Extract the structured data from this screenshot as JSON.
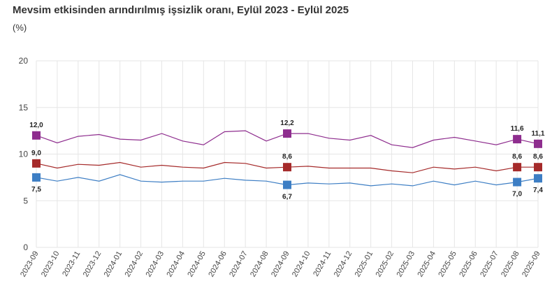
{
  "chart_data": {
    "type": "line",
    "title": "Mevsim etkisinden arındırılmış işsizlik oranı, Eylül 2023 - Eylül 2025",
    "ylabel": "(%)",
    "xlabel": "",
    "ylim": [
      0,
      20
    ],
    "yticks": [
      "0",
      "5",
      "10",
      "15",
      "20"
    ],
    "grid": true,
    "categories": [
      "2023-09",
      "2023-10",
      "2023-11",
      "2023-12",
      "2024-01",
      "2024-02",
      "2024-03",
      "2024-04",
      "2024-05",
      "2024-06",
      "2024-07",
      "2024-08",
      "2024-09",
      "2024-10",
      "2024-11",
      "2024-12",
      "2025-01",
      "2025-02",
      "2025-03",
      "2025-04",
      "2025-05",
      "2025-06",
      "2025-07",
      "2025-08",
      "2025-09"
    ],
    "series": [
      {
        "color": "#8e2d8e",
        "values": [
          12.0,
          11.2,
          11.9,
          12.1,
          11.6,
          11.5,
          12.2,
          11.4,
          11.0,
          12.4,
          12.5,
          11.4,
          12.2,
          12.2,
          11.7,
          11.5,
          12.0,
          11.0,
          10.7,
          11.5,
          11.8,
          11.4,
          11.0,
          11.6,
          11.1
        ],
        "labels": {
          "0": "12,0",
          "12": "12,2",
          "23": "11,6",
          "24": "11,1"
        }
      },
      {
        "color": "#a52a2a",
        "values": [
          9.0,
          8.5,
          8.9,
          8.8,
          9.1,
          8.6,
          8.8,
          8.6,
          8.5,
          9.1,
          9.0,
          8.5,
          8.6,
          8.7,
          8.5,
          8.5,
          8.5,
          8.2,
          8.0,
          8.6,
          8.4,
          8.6,
          8.2,
          8.6,
          8.6
        ],
        "labels": {
          "0": "9,0",
          "12": "8,6",
          "23": "8,6",
          "24": "8,6"
        }
      },
      {
        "color": "#3d7ec4",
        "values": [
          7.5,
          7.1,
          7.5,
          7.1,
          7.8,
          7.1,
          7.0,
          7.1,
          7.1,
          7.4,
          7.2,
          7.1,
          6.7,
          6.9,
          6.8,
          6.9,
          6.6,
          6.8,
          6.6,
          7.1,
          6.7,
          7.1,
          6.7,
          7.0,
          7.4
        ],
        "labels": {
          "0": "7,5",
          "12": "6,7",
          "23": "7,0",
          "24": "7,4"
        }
      }
    ]
  }
}
